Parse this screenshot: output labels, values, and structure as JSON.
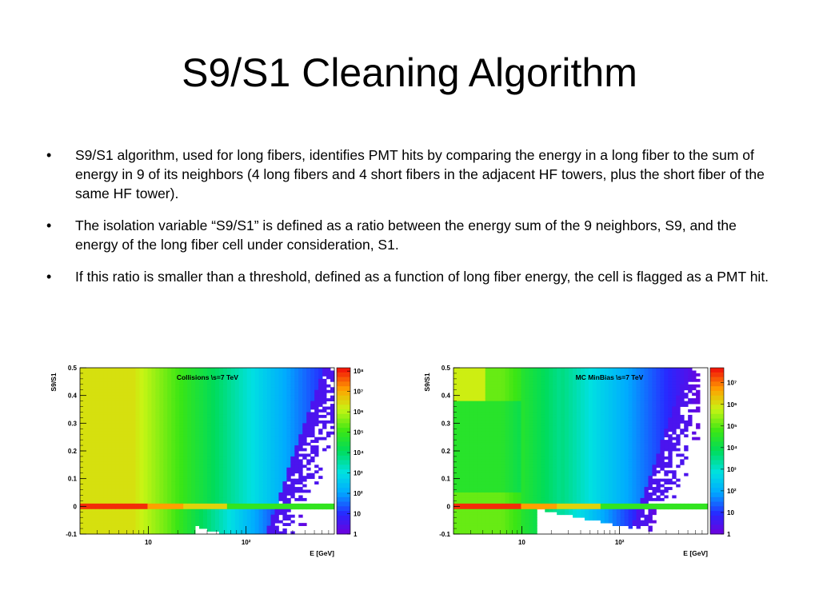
{
  "slide": {
    "title": "S9/S1 Cleaning Algorithm",
    "bullets": [
      "S9/S1 algorithm, used for long fibers, identifies PMT hits by comparing the energy in a long fiber to the sum of energy in 9 of its neighbors (4 long fibers and 4 short fibers in the adjacent HF towers, plus the short fiber of the same HF tower).",
      "The isolation variable “S9/S1” is defined as a ratio between the energy sum of the 9 neighbors, S9, and the energy of the long fiber cell under consideration, S1.",
      "If this ratio is smaller than a threshold, defined as a function of long fiber energy, the cell is flagged as a PMT hit."
    ],
    "bullet_symbol": "•"
  },
  "chart_data": [
    {
      "type": "heatmap",
      "label": "Collisions \\s=7 TeV",
      "ylabel": "S9/S1",
      "xlabel": "E [GeV]",
      "xscale": "log",
      "xlim": [
        2,
        800
      ],
      "ylim": [
        -0.1,
        0.5
      ],
      "yticks": [
        "0.5",
        "0.4",
        "0.3",
        "0.2",
        "0.1",
        "0",
        "-0.1"
      ],
      "xticks": [
        "10",
        "10²"
      ],
      "colorbar": {
        "scale": "log",
        "ticks": [
          "10⁸",
          "10⁷",
          "10⁶",
          "10⁵",
          "10⁴",
          "10³",
          "10²",
          "10",
          "1"
        ]
      }
    },
    {
      "type": "heatmap",
      "label": "MC MinBias \\s=7 TeV",
      "ylabel": "S9/S1",
      "xlabel": "E [GeV]",
      "xscale": "log",
      "xlim": [
        2,
        800
      ],
      "ylim": [
        -0.1,
        0.5
      ],
      "yticks": [
        "0.5",
        "0.4",
        "0.3",
        "0.2",
        "0.1",
        "0",
        "-0.1"
      ],
      "xticks": [
        "10",
        "10²"
      ],
      "colorbar": {
        "scale": "log",
        "ticks": [
          "10⁷",
          "10⁶",
          "10⁵",
          "10⁴",
          "10³",
          "10²",
          "10",
          "1"
        ]
      }
    }
  ]
}
